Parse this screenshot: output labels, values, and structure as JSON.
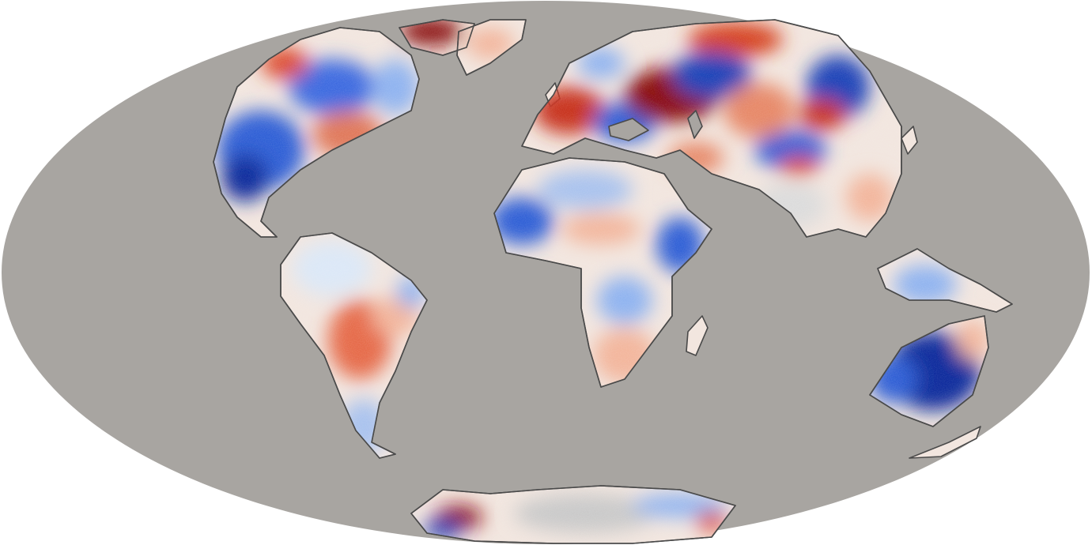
{
  "map": {
    "projection": "mollweide",
    "ocean_color": "#a8a5a1",
    "background_color": "#ffffff",
    "coastline_color": "#4a4a4a",
    "palette": {
      "strong_cold": "#0a2a9c",
      "cold": "#2f5fd6",
      "cool": "#8fb3f0",
      "neutral": "#f4f1ee",
      "warm": "#f3b69c",
      "hot": "#dd4a2a",
      "strong_hot": "#8a0c0c"
    },
    "continents": [
      "north-america",
      "greenland",
      "south-america",
      "europe",
      "africa",
      "asia",
      "southeast-asia",
      "australia",
      "antarctica"
    ],
    "anomaly_regions": [
      {
        "region": "western-north-america",
        "tone": "strong_cold"
      },
      {
        "region": "central-canada",
        "tone": "cold"
      },
      {
        "region": "eastern-united-states",
        "tone": "hot"
      },
      {
        "region": "canadian-arctic-islands",
        "tone": "strong_hot"
      },
      {
        "region": "iberia-western-europe",
        "tone": "hot"
      },
      {
        "region": "eastern-europe-russia",
        "tone": "strong_hot"
      },
      {
        "region": "black-sea-turkey",
        "tone": "cold"
      },
      {
        "region": "northern-siberia",
        "tone": "hot"
      },
      {
        "region": "central-siberia",
        "tone": "strong_cold"
      },
      {
        "region": "mongolia-north-china",
        "tone": "cold"
      },
      {
        "region": "west-africa-sahel",
        "tone": "cold"
      },
      {
        "region": "east-africa",
        "tone": "cold"
      },
      {
        "region": "central-south-america",
        "tone": "hot"
      },
      {
        "region": "australia-interior",
        "tone": "strong_cold"
      },
      {
        "region": "antarctic-peninsula",
        "tone": "strong_hot"
      }
    ]
  }
}
